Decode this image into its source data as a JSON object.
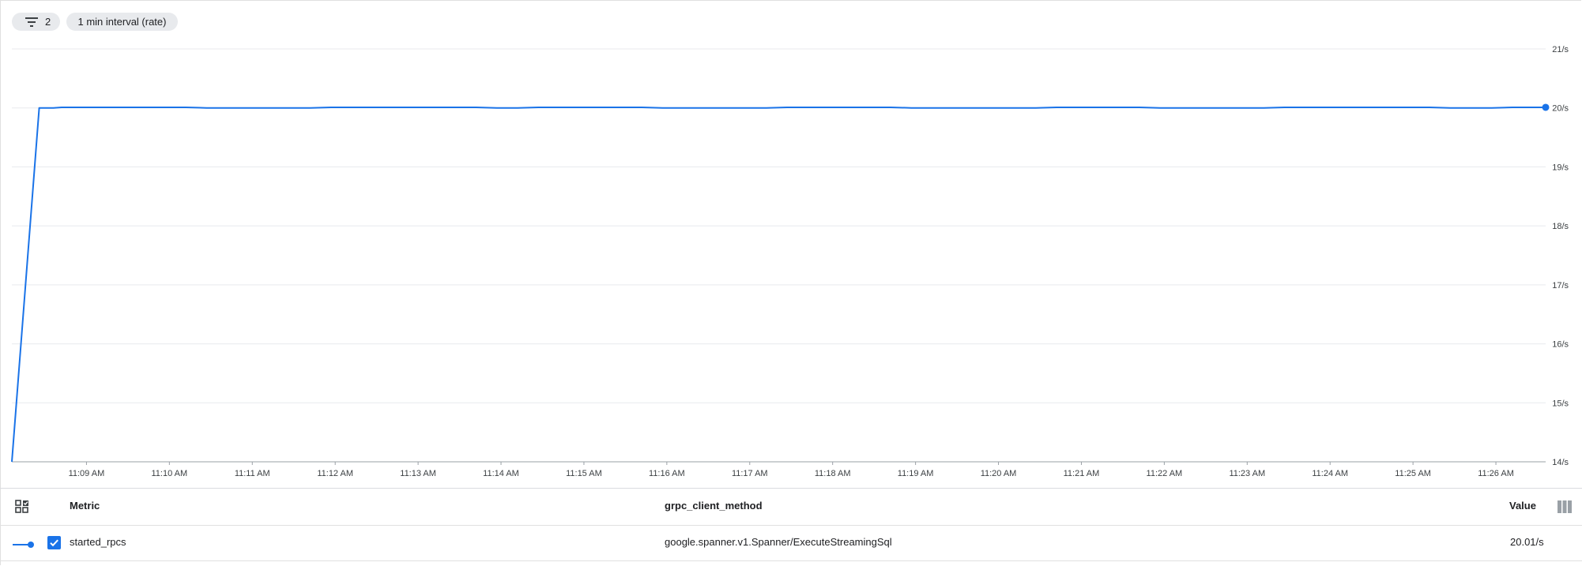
{
  "toolbar": {
    "filter_count": "2",
    "interval_label": "1 min interval (rate)"
  },
  "chart_data": {
    "type": "line",
    "x_ticks": [
      "11:09 AM",
      "11:10 AM",
      "11:11 AM",
      "11:12 AM",
      "11:13 AM",
      "11:14 AM",
      "11:15 AM",
      "11:16 AM",
      "11:17 AM",
      "11:18 AM",
      "11:19 AM",
      "11:20 AM",
      "11:21 AM",
      "11:22 AM",
      "11:23 AM",
      "11:24 AM",
      "11:25 AM",
      "11:26 AM"
    ],
    "y_ticks": [
      "14/s",
      "15/s",
      "16/s",
      "17/s",
      "18/s",
      "19/s",
      "20/s",
      "21/s"
    ],
    "ylim": [
      14,
      21
    ],
    "xlim_minutes": [
      8.1,
      26.6
    ],
    "series": [
      {
        "name": "started_rpcs",
        "color": "#1a73e8",
        "x_minutes": [
          8.1,
          8.43,
          8.6,
          8.7,
          8.95,
          9.2,
          9.45,
          9.7,
          9.95,
          10.2,
          10.45,
          10.7,
          10.95,
          11.2,
          11.45,
          11.7,
          11.95,
          12.2,
          12.45,
          12.7,
          12.95,
          13.2,
          13.45,
          13.7,
          13.95,
          14.2,
          14.45,
          14.7,
          14.95,
          15.2,
          15.45,
          15.7,
          15.95,
          16.2,
          16.45,
          16.7,
          16.95,
          17.2,
          17.45,
          17.7,
          17.95,
          18.2,
          18.45,
          18.7,
          18.95,
          19.2,
          19.45,
          19.7,
          19.95,
          20.2,
          20.45,
          20.7,
          20.95,
          21.2,
          21.45,
          21.7,
          21.95,
          22.2,
          22.45,
          22.7,
          22.95,
          23.2,
          23.45,
          23.7,
          23.95,
          24.2,
          24.45,
          24.7,
          24.95,
          25.2,
          25.45,
          25.7,
          25.95,
          26.2,
          26.45,
          26.6
        ],
        "values": [
          14.0,
          20.0,
          20.0,
          20.01,
          20.01,
          20.01,
          20.01,
          20.01,
          20.01,
          20.01,
          20.0,
          20.0,
          20.0,
          20.0,
          20.0,
          20.0,
          20.01,
          20.01,
          20.01,
          20.01,
          20.01,
          20.01,
          20.01,
          20.01,
          20.0,
          20.0,
          20.01,
          20.01,
          20.01,
          20.01,
          20.01,
          20.01,
          20.0,
          20.0,
          20.0,
          20.0,
          20.0,
          20.0,
          20.01,
          20.01,
          20.01,
          20.01,
          20.01,
          20.01,
          20.0,
          20.0,
          20.0,
          20.0,
          20.0,
          20.0,
          20.0,
          20.01,
          20.01,
          20.01,
          20.01,
          20.01,
          20.0,
          20.0,
          20.0,
          20.0,
          20.0,
          20.0,
          20.01,
          20.01,
          20.01,
          20.01,
          20.01,
          20.01,
          20.01,
          20.01,
          20.0,
          20.0,
          20.0,
          20.01,
          20.01,
          20.01
        ]
      }
    ]
  },
  "table": {
    "headers": {
      "metric": "Metric",
      "method": "grpc_client_method",
      "value": "Value"
    },
    "rows": [
      {
        "metric": "started_rpcs",
        "method": "google.spanner.v1.Spanner/ExecuteStreamingSql",
        "value": "20.01/s",
        "checked": true
      }
    ]
  }
}
